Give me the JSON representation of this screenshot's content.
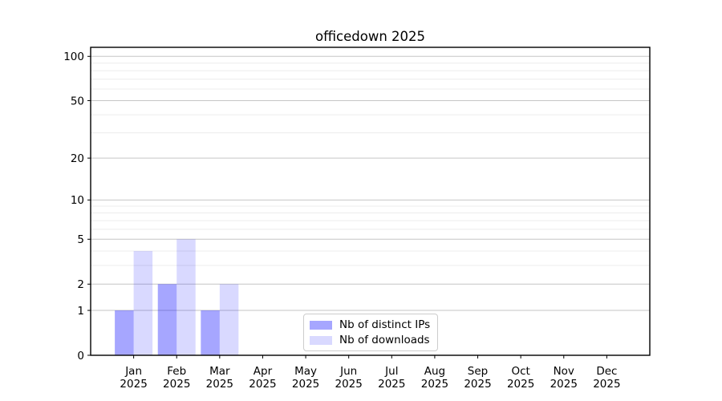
{
  "chart_data": {
    "type": "bar",
    "title": "officedown 2025",
    "categories": [
      "Jan",
      "Feb",
      "Mar",
      "Apr",
      "May",
      "Jun",
      "Jul",
      "Aug",
      "Sep",
      "Oct",
      "Nov",
      "Dec"
    ],
    "year_label": "2025",
    "series": [
      {
        "name": "Nb of distinct IPs",
        "color": "rgba(0,0,255,0.35)",
        "values": [
          1,
          2,
          1,
          0,
          0,
          0,
          0,
          0,
          0,
          0,
          0,
          0
        ]
      },
      {
        "name": "Nb of downloads",
        "color": "rgba(0,0,255,0.15)",
        "values": [
          4,
          5,
          2,
          0,
          0,
          0,
          0,
          0,
          0,
          0,
          0,
          0
        ]
      }
    ],
    "y_axis": {
      "scale": "log1p",
      "ticks": [
        0,
        1,
        2,
        5,
        10,
        20,
        50,
        100
      ],
      "minor_ticks": [
        3,
        4,
        6,
        7,
        8,
        9,
        30,
        40,
        60,
        70,
        80,
        90
      ],
      "max_log1p": 2.065
    },
    "x_axis": {
      "tick_label_lines": 2
    },
    "grid": {
      "major_color": "#c6c6c6",
      "minor_color": "#ececec",
      "on": "both"
    },
    "colors": {
      "spine": "#000000",
      "tick_label": "#000000",
      "background": "#ffffff"
    },
    "legend": {
      "position": "bottom-center",
      "border_color": "#cccccc"
    }
  }
}
